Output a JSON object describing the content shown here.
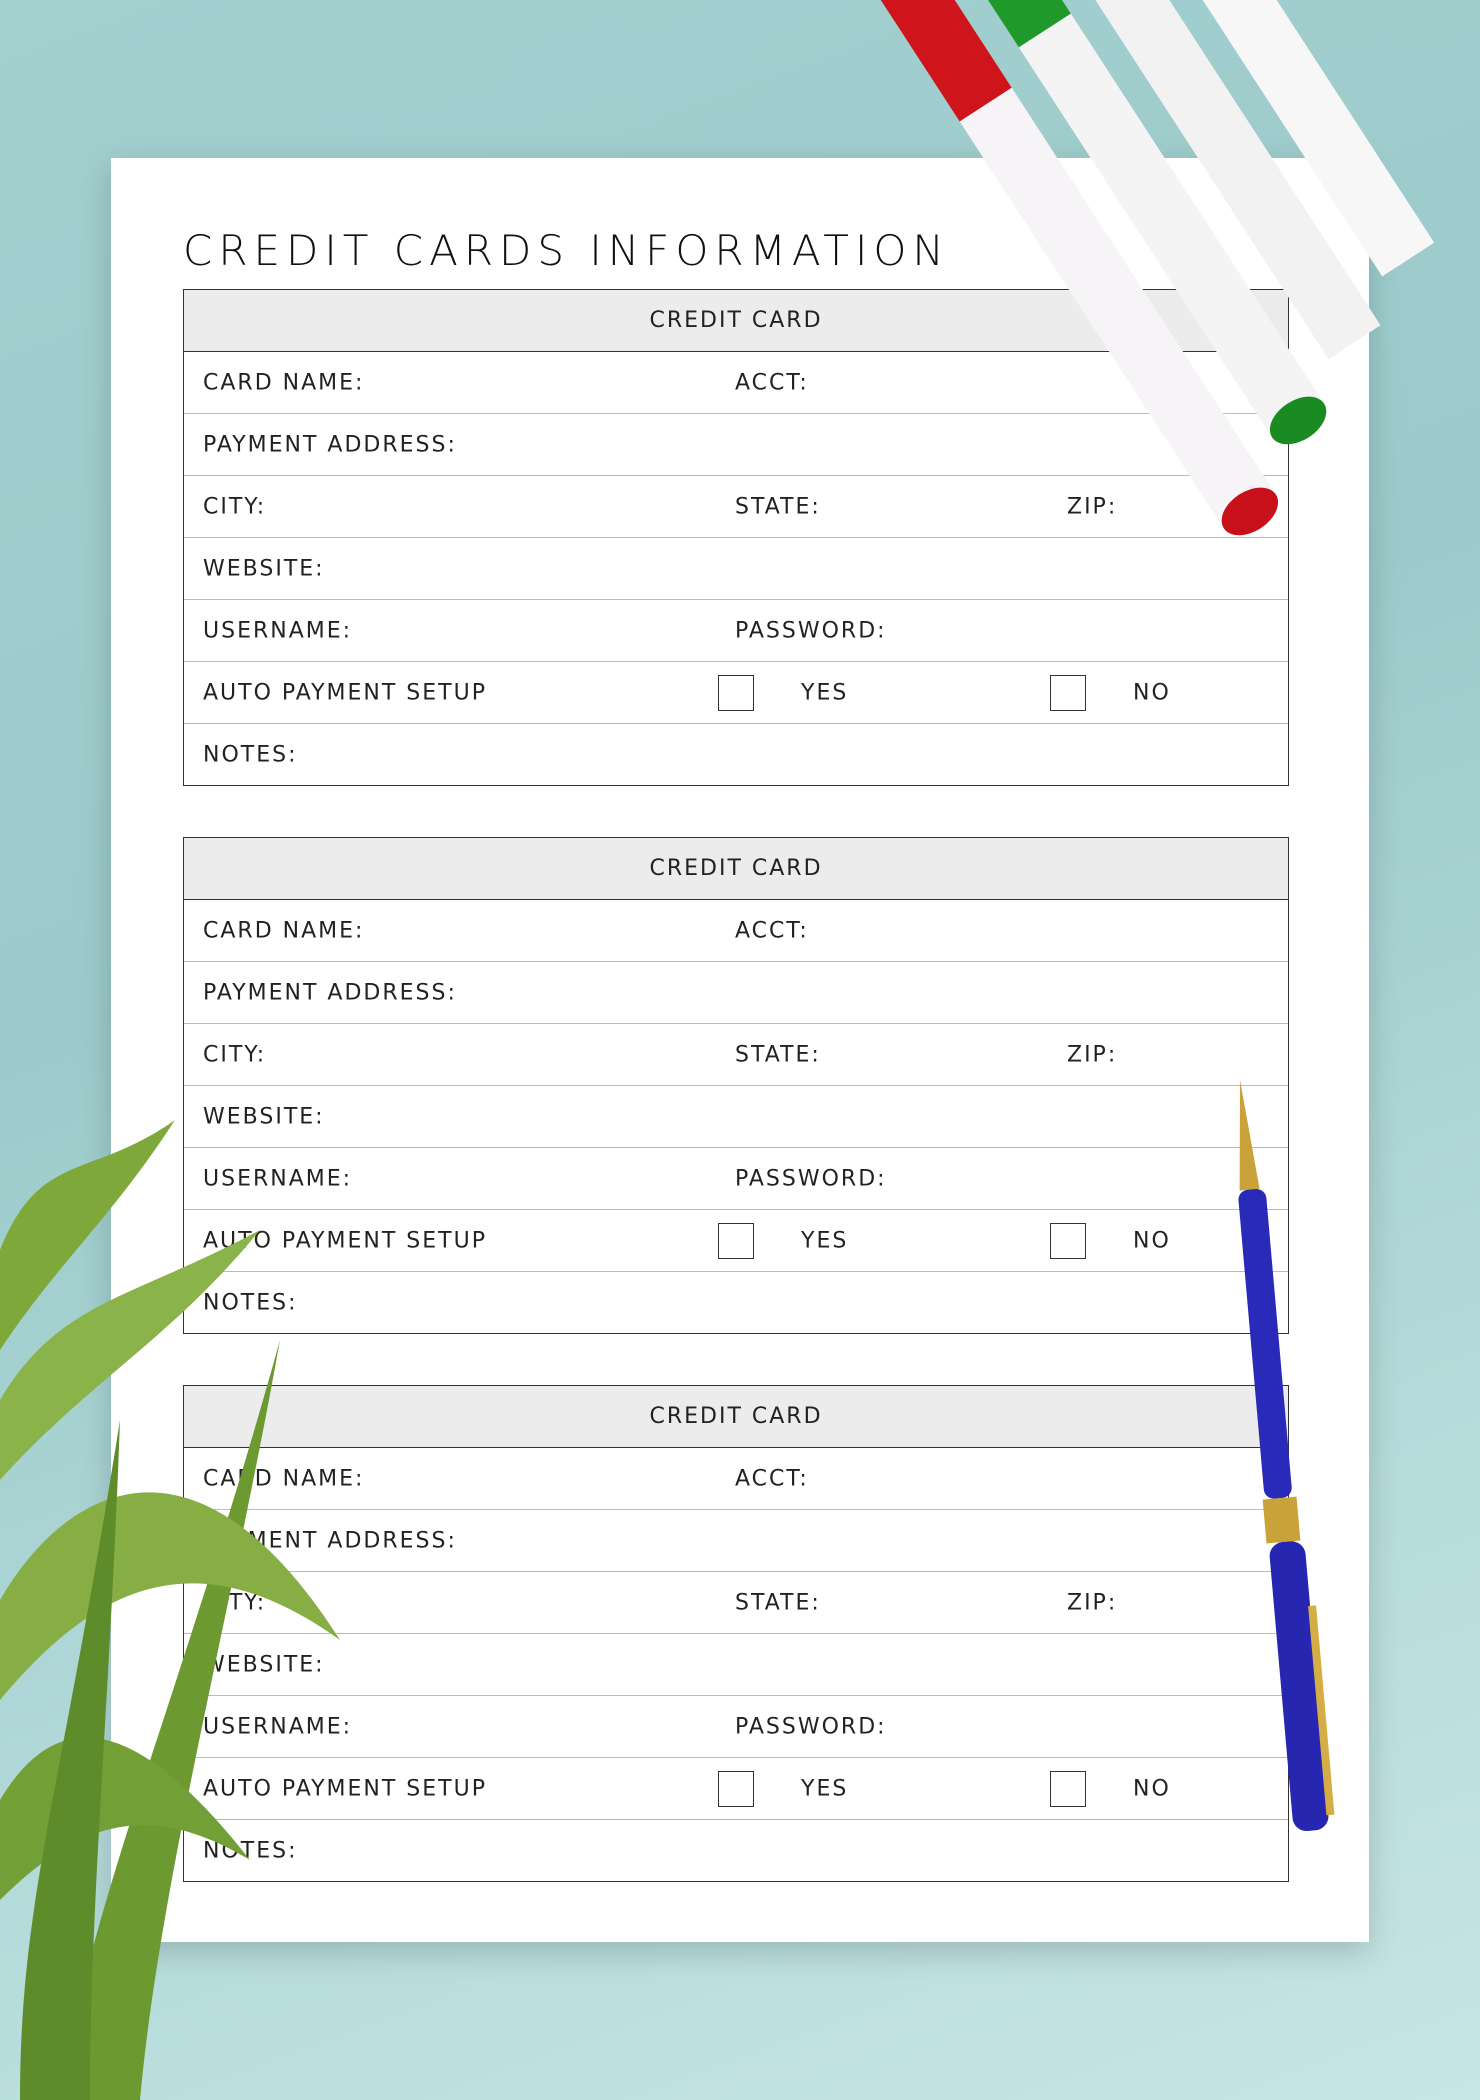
{
  "page": {
    "title": "CREDIT CARDS INFORMATION"
  },
  "cards": [
    {
      "header": "CREDIT CARD",
      "card_name": "CARD NAME:",
      "acct": "ACCT:",
      "payment_address": "PAYMENT ADDRESS:",
      "city": "CITY:",
      "state": "STATE:",
      "zip": "ZIP:",
      "website": "WEBSITE:",
      "username": "USERNAME:",
      "password": "PASSWORD:",
      "auto_payment": "AUTO PAYMENT SETUP",
      "yes": "YES",
      "no": "NO",
      "notes": "NOTES:"
    },
    {
      "header": "CREDIT CARD",
      "card_name": "CARD NAME:",
      "acct": "ACCT:",
      "payment_address": "PAYMENT ADDRESS:",
      "city": "CITY:",
      "state": "STATE:",
      "zip": "ZIP:",
      "website": "WEBSITE:",
      "username": "USERNAME:",
      "password": "PASSWORD:",
      "auto_payment": "AUTO PAYMENT SETUP",
      "yes": "YES",
      "no": "NO",
      "notes": "NOTES:"
    },
    {
      "header": "CREDIT CARD",
      "card_name": "CARD NAME:",
      "acct": "ACCT:",
      "payment_address": "PAYMENT ADDRESS:",
      "city": "CITY:",
      "state": "STATE:",
      "zip": "ZIP:",
      "website": "WEBSITE:",
      "username": "USERNAME:",
      "password": "PASSWORD:",
      "auto_payment": "AUTO PAYMENT SETUP",
      "yes": "YES",
      "no": "NO",
      "notes": "NOTES:"
    }
  ],
  "colors": {
    "background": "#a3cfcf",
    "header_fill": "#ececec",
    "border": "#333333",
    "marker_red": "#d0141c",
    "marker_green": "#1f9a2a",
    "pen_blue": "#2a2ab8",
    "pen_gold": "#c9a23a",
    "leaf_green": "#7fa83a"
  }
}
